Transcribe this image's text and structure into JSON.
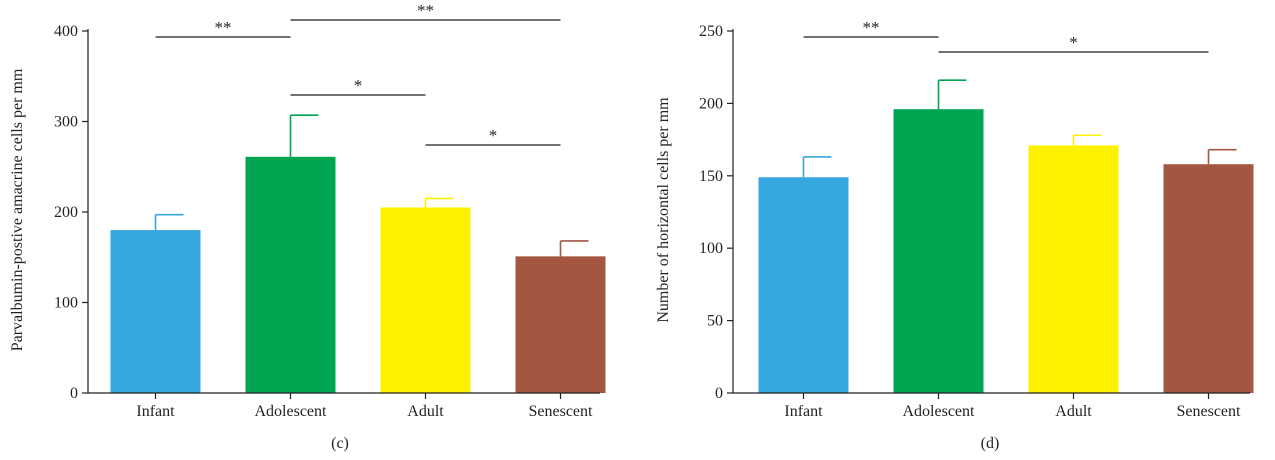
{
  "chart_data": [
    {
      "type": "bar",
      "panel_label": "(c)",
      "title": "",
      "xlabel": "",
      "ylabel": "Parvalbumin-postive amacrine cells per mm",
      "categories": [
        "Infant",
        "Adolescent",
        "Adult",
        "Senescent"
      ],
      "values": [
        180,
        261,
        205,
        151
      ],
      "errors": [
        17,
        46,
        10,
        17
      ],
      "colors": [
        "#36a7de",
        "#00a551",
        "#fff200",
        "#a55641"
      ],
      "ylim": [
        0,
        400
      ],
      "yticks": [
        "0",
        "100",
        "200",
        "300",
        "400"
      ],
      "grid": false,
      "legend": "none",
      "significance": [
        {
          "from": 0,
          "to": 1,
          "label": "**"
        },
        {
          "from": 1,
          "to": 3,
          "label": "**"
        },
        {
          "from": 1,
          "to": 2,
          "label": "*"
        },
        {
          "from": 2,
          "to": 3,
          "label": "*"
        }
      ]
    },
    {
      "type": "bar",
      "panel_label": "(d)",
      "title": "",
      "xlabel": "",
      "ylabel": "Number of horizontal cells per mm",
      "categories": [
        "Infant",
        "Adolescent",
        "Adult",
        "Senescent"
      ],
      "values": [
        149,
        196,
        171,
        158
      ],
      "errors": [
        14,
        20,
        7,
        10
      ],
      "colors": [
        "#36a7de",
        "#00a551",
        "#fff200",
        "#a55641"
      ],
      "ylim": [
        0,
        250
      ],
      "yticks": [
        "0",
        "50",
        "100",
        "150",
        "200",
        "250"
      ],
      "grid": false,
      "legend": "none",
      "significance": [
        {
          "from": 0,
          "to": 1,
          "label": "**"
        },
        {
          "from": 1,
          "to": 3,
          "label": "*"
        }
      ]
    }
  ]
}
